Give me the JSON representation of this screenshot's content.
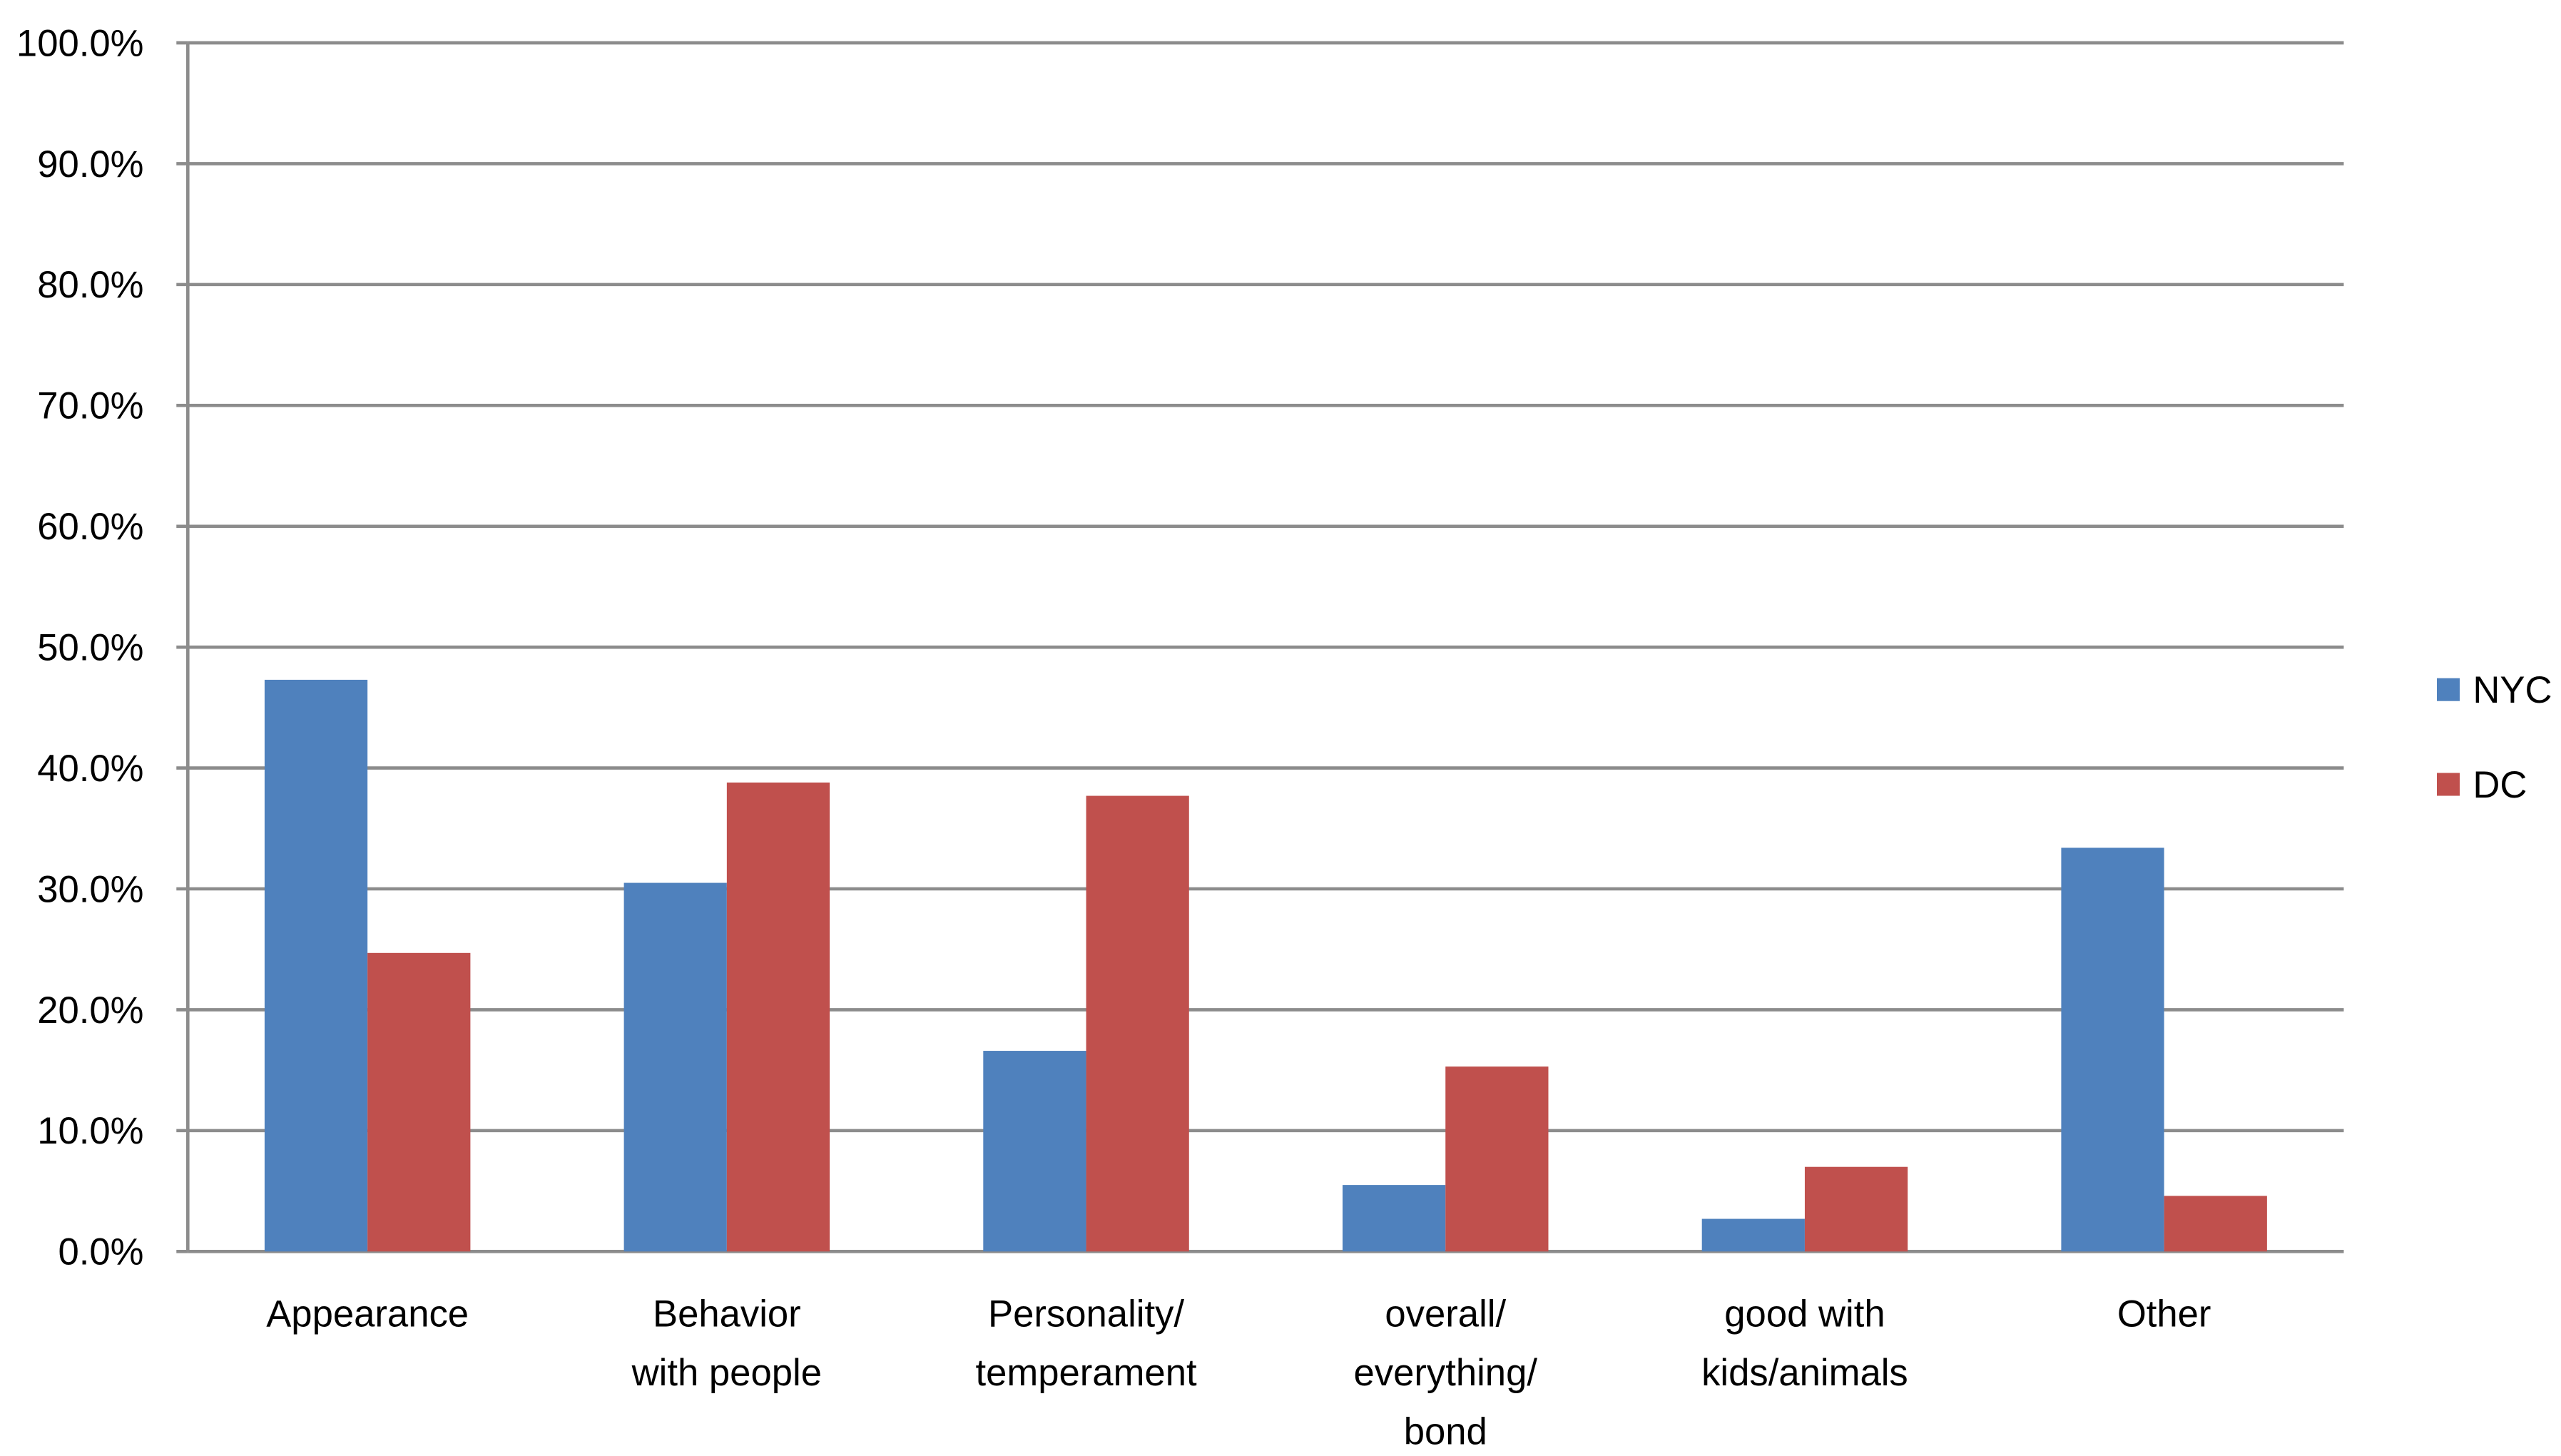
{
  "chart_data": {
    "type": "bar",
    "categories": [
      [
        "Appearance"
      ],
      [
        "Behavior",
        "with people"
      ],
      [
        "Personality/",
        "temperament"
      ],
      [
        "overall/",
        "everything/",
        "bond"
      ],
      [
        "good with",
        "kids/animals"
      ],
      [
        "Other"
      ]
    ],
    "series": [
      {
        "name": "NYC",
        "color": "#4f81bd",
        "values": [
          47.3,
          30.5,
          16.6,
          5.5,
          2.7,
          33.4
        ]
      },
      {
        "name": "DC",
        "color": "#c0504d",
        "values": [
          24.7,
          38.8,
          37.7,
          15.3,
          7.0,
          4.6
        ]
      }
    ],
    "ylim": [
      0,
      100
    ],
    "yticks": [
      {
        "value": 0,
        "label": "0.0%"
      },
      {
        "value": 10,
        "label": "10.0%"
      },
      {
        "value": 20,
        "label": "20.0%"
      },
      {
        "value": 30,
        "label": "30.0%"
      },
      {
        "value": 40,
        "label": "40.0%"
      },
      {
        "value": 50,
        "label": "50.0%"
      },
      {
        "value": 60,
        "label": "60.0%"
      },
      {
        "value": 70,
        "label": "70.0%"
      },
      {
        "value": 80,
        "label": "80.0%"
      },
      {
        "value": 90,
        "label": "90.0%"
      },
      {
        "value": 100,
        "label": "100.0%"
      }
    ],
    "grid": true,
    "legend": "right"
  }
}
